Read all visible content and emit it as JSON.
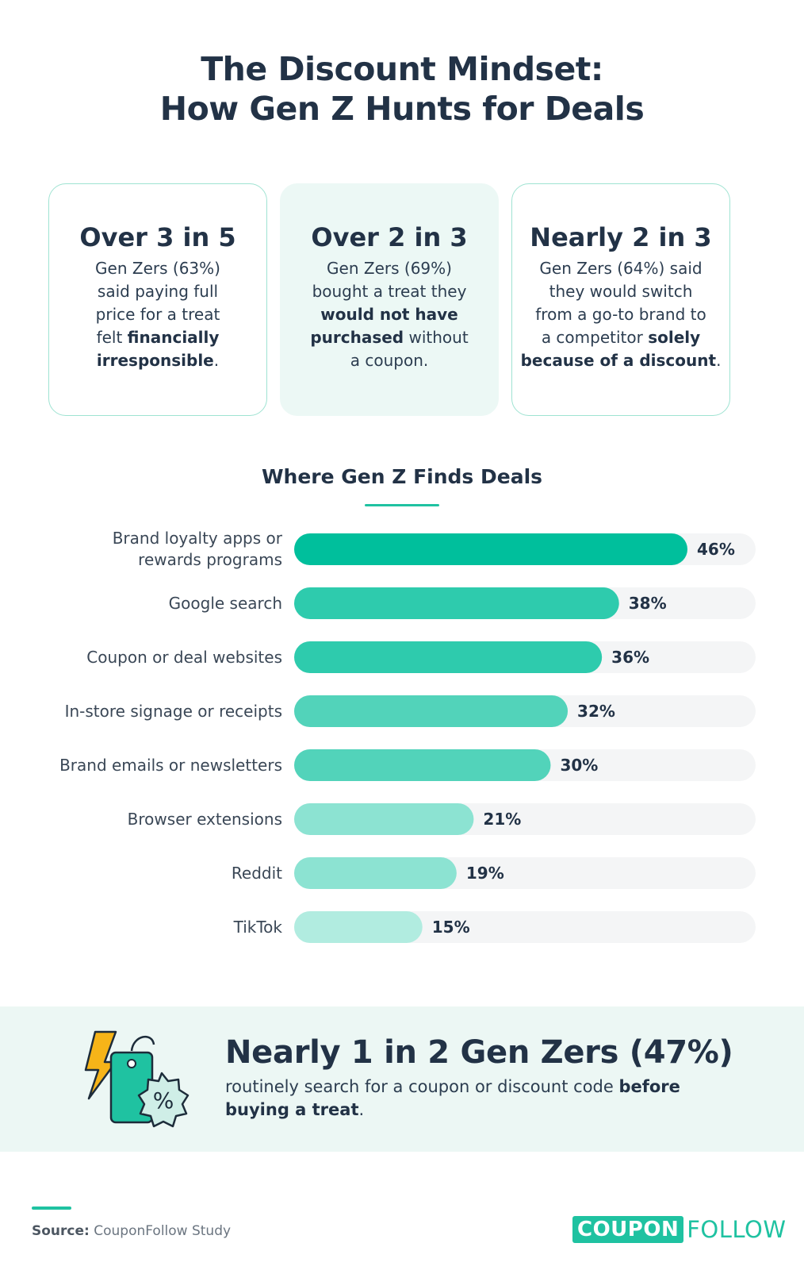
{
  "title": {
    "line1": "The Discount Mindset:",
    "line2": "How Gen Z Hunts for Deals"
  },
  "cards": [
    {
      "headline": "Over 3 in 5",
      "l1": "Gen Zers (63%)",
      "l2": "said paying full",
      "l3": "price for a treat",
      "l4a": "felt ",
      "l4b": "financially",
      "l5a": "irresponsible",
      "l5b": "."
    },
    {
      "headline": "Over 2 in 3",
      "l1": "Gen Zers (69%)",
      "l2": "bought a treat they",
      "l3": "would not have",
      "l4a": "purchased",
      "l4b": " without",
      "l5": "a coupon."
    },
    {
      "headline": "Nearly 2 in 3",
      "l1": "Gen Zers (64%) said",
      "l2": "they would switch",
      "l3": "from a go-to brand to",
      "l4a": "a competitor ",
      "l4b": "solely",
      "l5a": "because of a discount",
      "l5b": "."
    }
  ],
  "chart_data": {
    "type": "bar",
    "orientation": "horizontal",
    "title": "Where Gen Z Finds Deals",
    "categories": [
      [
        "Brand loyalty apps or",
        "rewards programs"
      ],
      [
        "Google search"
      ],
      [
        "Coupon or deal websites"
      ],
      [
        "In-store signage or receipts"
      ],
      [
        "Brand emails or newsletters"
      ],
      [
        "Browser extensions"
      ],
      [
        "Reddit"
      ],
      [
        "TikTok"
      ]
    ],
    "values": [
      46,
      38,
      36,
      32,
      30,
      21,
      19,
      15
    ],
    "value_labels": [
      "46%",
      "38%",
      "36%",
      "32%",
      "30%",
      "21%",
      "19%",
      "15%"
    ],
    "unit": "%",
    "colors": [
      "#00bf9c",
      "#2ecbad",
      "#2ecbad",
      "#52d3ba",
      "#52d3ba",
      "#8ce3d2",
      "#8ce3d2",
      "#b1ece0"
    ],
    "track_color": "#f4f5f6"
  },
  "banner": {
    "headline": "Nearly 1 in 2 Gen Zers (47%)",
    "l1a": "routinely search for a coupon or discount code ",
    "l1b": "before",
    "l2a": "buying a treat",
    "l2b": "."
  },
  "footer": {
    "source_label": "Source:",
    "source_text": " CouponFollow Study",
    "logo_box": "COUPON",
    "logo_rest": "FOLLOW"
  },
  "colors": {
    "accent": "#1fc2a1",
    "dark_text": "#223246",
    "banner_bg": "#ecf7f4",
    "bolt": "#f6b418"
  }
}
